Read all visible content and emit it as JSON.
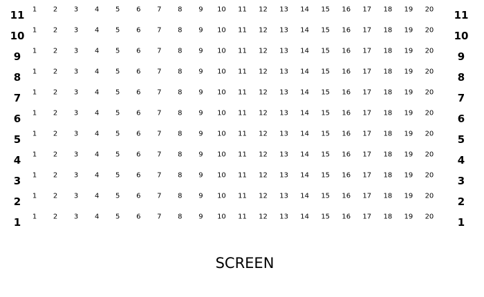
{
  "seat_map": {
    "rows": [
      "11",
      "10",
      "9",
      "8",
      "7",
      "6",
      "5",
      "4",
      "3",
      "2",
      "1"
    ],
    "seats": [
      "1",
      "2",
      "3",
      "4",
      "5",
      "6",
      "7",
      "8",
      "9",
      "10",
      "11",
      "12",
      "13",
      "14",
      "15",
      "16",
      "17",
      "18",
      "19",
      "20"
    ]
  },
  "screen": {
    "label": "SCREEN"
  }
}
